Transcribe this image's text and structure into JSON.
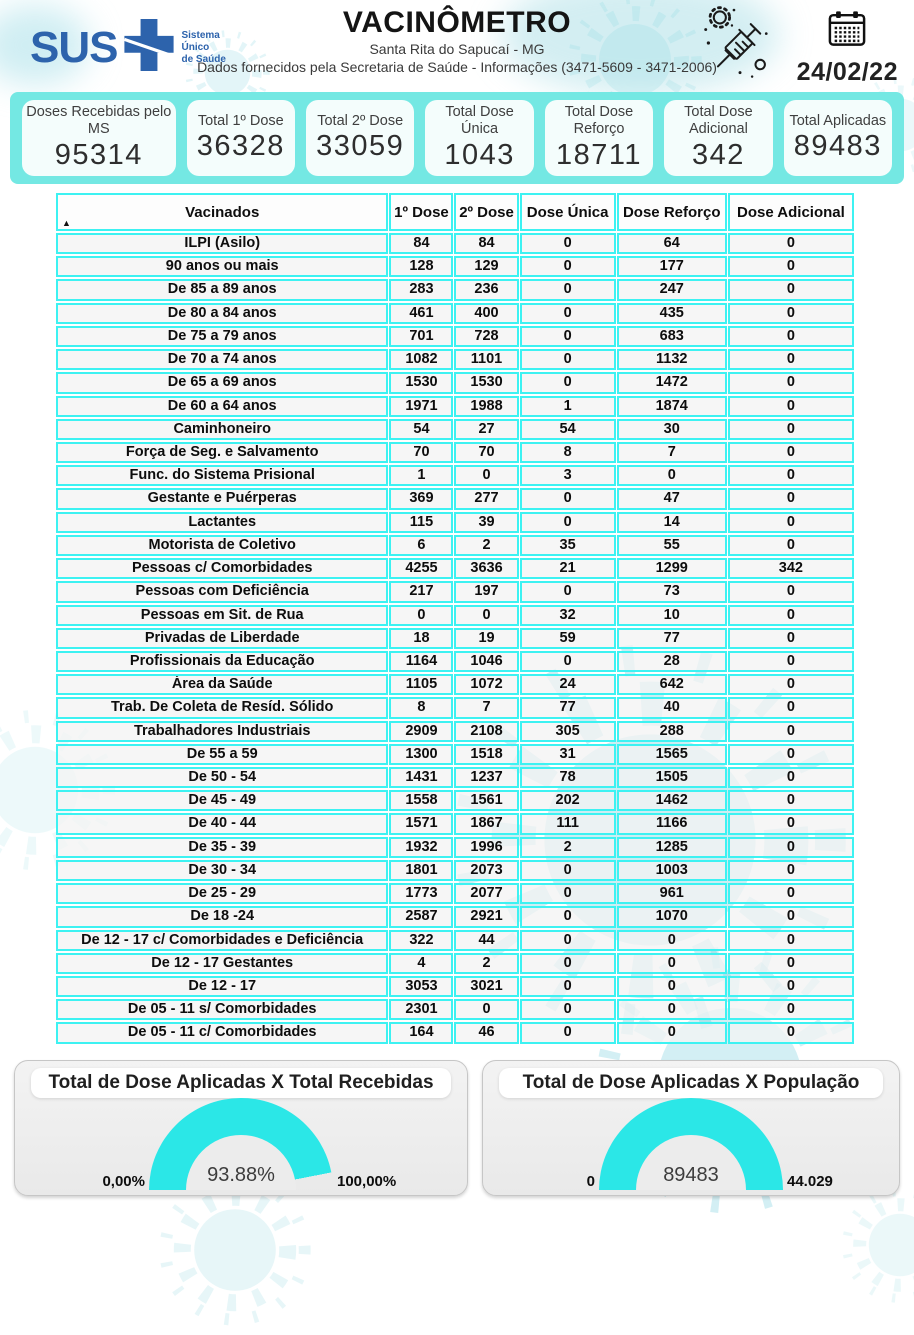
{
  "header": {
    "logo": {
      "text": "SUS",
      "lines": [
        "Sistema",
        "Único",
        "de Saúde"
      ]
    },
    "title": "VACINÔMETRO",
    "subtitle1": "Santa Rita do Sapucaí - MG",
    "subtitle2": "Dados fornecidos pela Secretaria de Saúde - Informações (3471-5609 - 3471-2006)",
    "date": "24/02/22"
  },
  "summary_cards": [
    {
      "label": "Doses Recebidas pelo MS",
      "value": "95314"
    },
    {
      "label": "Total 1º Dose",
      "value": "36328"
    },
    {
      "label": "Total 2º Dose",
      "value": "33059"
    },
    {
      "label": "Total Dose Única",
      "value": "1043"
    },
    {
      "label": "Total Dose Reforço",
      "value": "18711"
    },
    {
      "label": "Total Dose Adicional",
      "value": "342"
    },
    {
      "label": "Total Aplicadas",
      "value": "89483"
    }
  ],
  "chart_data": [
    {
      "type": "table",
      "title": "Vacinados",
      "sort_indicator": "▲",
      "columns": [
        "Vacinados",
        "1º Dose",
        "2º Dose",
        "Dose Única",
        "Dose Reforço",
        "Dose Adicional"
      ],
      "rows": [
        [
          "ILPI (Asilo)",
          "84",
          "84",
          "0",
          "64",
          "0"
        ],
        [
          "90 anos ou mais",
          "128",
          "129",
          "0",
          "177",
          "0"
        ],
        [
          "De 85 a 89 anos",
          "283",
          "236",
          "0",
          "247",
          "0"
        ],
        [
          "De 80 a 84 anos",
          "461",
          "400",
          "0",
          "435",
          "0"
        ],
        [
          "De 75 a 79 anos",
          "701",
          "728",
          "0",
          "683",
          "0"
        ],
        [
          "De 70 a 74 anos",
          "1082",
          "1101",
          "0",
          "1132",
          "0"
        ],
        [
          "De 65 a 69 anos",
          "1530",
          "1530",
          "0",
          "1472",
          "0"
        ],
        [
          "De 60 a 64 anos",
          "1971",
          "1988",
          "1",
          "1874",
          "0"
        ],
        [
          "Caminhoneiro",
          "54",
          "27",
          "54",
          "30",
          "0"
        ],
        [
          "Força de Seg. e Salvamento",
          "70",
          "70",
          "8",
          "7",
          "0"
        ],
        [
          "Func. do Sistema Prisional",
          "1",
          "0",
          "3",
          "0",
          "0"
        ],
        [
          "Gestante e Puérperas",
          "369",
          "277",
          "0",
          "47",
          "0"
        ],
        [
          "Lactantes",
          "115",
          "39",
          "0",
          "14",
          "0"
        ],
        [
          "Motorista de Coletivo",
          "6",
          "2",
          "35",
          "55",
          "0"
        ],
        [
          "Pessoas c/ Comorbidades",
          "4255",
          "3636",
          "21",
          "1299",
          "342"
        ],
        [
          "Pessoas com Deficiência",
          "217",
          "197",
          "0",
          "73",
          "0"
        ],
        [
          "Pessoas em Sit. de Rua",
          "0",
          "0",
          "32",
          "10",
          "0"
        ],
        [
          "Privadas de Liberdade",
          "18",
          "19",
          "59",
          "77",
          "0"
        ],
        [
          "Profissionais da Educação",
          "1164",
          "1046",
          "0",
          "28",
          "0"
        ],
        [
          "Área da Saúde",
          "1105",
          "1072",
          "24",
          "642",
          "0"
        ],
        [
          "Trab. De Coleta de Resíd. Sólido",
          "8",
          "7",
          "77",
          "40",
          "0"
        ],
        [
          "Trabalhadores Industriais",
          "2909",
          "2108",
          "305",
          "288",
          "0"
        ],
        [
          "De 55 a 59",
          "1300",
          "1518",
          "31",
          "1565",
          "0"
        ],
        [
          "De 50 - 54",
          "1431",
          "1237",
          "78",
          "1505",
          "0"
        ],
        [
          "De 45 - 49",
          "1558",
          "1561",
          "202",
          "1462",
          "0"
        ],
        [
          "De 40 - 44",
          "1571",
          "1867",
          "111",
          "1166",
          "0"
        ],
        [
          "De 35 - 39",
          "1932",
          "1996",
          "2",
          "1285",
          "0"
        ],
        [
          "De 30 - 34",
          "1801",
          "2073",
          "0",
          "1003",
          "0"
        ],
        [
          "De 25 - 29",
          "1773",
          "2077",
          "0",
          "961",
          "0"
        ],
        [
          "De 18 -24",
          "2587",
          "2921",
          "0",
          "1070",
          "0"
        ],
        [
          "De 12 - 17 c/ Comorbidades e Deficiência",
          "322",
          "44",
          "0",
          "0",
          "0"
        ],
        [
          "De 12 - 17 Gestantes",
          "4",
          "2",
          "0",
          "0",
          "0"
        ],
        [
          "De 12 - 17",
          "3053",
          "3021",
          "0",
          "0",
          "0"
        ],
        [
          "De 05 - 11 s/ Comorbidades",
          "2301",
          "0",
          "0",
          "0",
          "0"
        ],
        [
          "De 05 - 11 c/ Comorbidades",
          "164",
          "46",
          "0",
          "0",
          "0"
        ]
      ]
    },
    {
      "type": "gauge",
      "title": "Total de Dose Aplicadas X Total Recebidas",
      "value": 93.88,
      "min": 0,
      "max": 100,
      "value_label": "93.88%",
      "min_label": "0,00%",
      "max_label": "100,00%"
    },
    {
      "type": "gauge",
      "title": "Total de Dose Aplicadas X População",
      "value": 89483,
      "min": 0,
      "max": 44029,
      "value_label": "89483",
      "min_label": "0",
      "max_label": "44.029"
    }
  ],
  "colors": {
    "accent_band": "#74e8e3",
    "table_border": "#3df2f2",
    "gauge_fill": "#2be7e7",
    "sus_blue": "#2d63ac"
  },
  "icons": {
    "calendar": "calendar-icon",
    "syringe_virus": "syringe-virus-icon",
    "sort": "sort-ascending-icon"
  }
}
